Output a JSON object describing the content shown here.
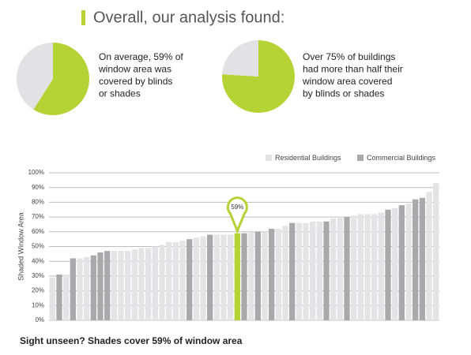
{
  "header": {
    "title": "Overall, our analysis found:",
    "color": "#b5d334"
  },
  "chart_data": [
    {
      "type": "pie",
      "values": [
        59,
        41
      ],
      "colors": [
        "#b5d334",
        "#e2e2e4"
      ],
      "description": [
        "On average, 59% of",
        "window area was",
        "covered by blinds",
        "or shades"
      ]
    },
    {
      "type": "pie",
      "values": [
        76,
        24
      ],
      "colors": [
        "#b5d334",
        "#e2e2e4"
      ],
      "description": [
        "Over 75% of buildings",
        "had more than half their",
        "window area covered",
        "by blinds or shades"
      ]
    },
    {
      "type": "bar",
      "title": "Sight unseen? Shades cover 59% of window area",
      "y_label": "Shaded Window Area",
      "ylim": [
        0,
        100
      ],
      "yticks": [
        {
          "value": 0,
          "label": "0%"
        },
        {
          "value": 10,
          "label": "10%"
        },
        {
          "value": 20,
          "label": "20%"
        },
        {
          "value": 30,
          "label": "30%"
        },
        {
          "value": 40,
          "label": "40%"
        },
        {
          "value": 50,
          "label": "50%"
        },
        {
          "value": 60,
          "label": "60%"
        },
        {
          "value": 70,
          "label": "70%"
        },
        {
          "value": 80,
          "label": "80%"
        },
        {
          "value": 90,
          "label": "90%"
        },
        {
          "value": 100,
          "label": "100%"
        }
      ],
      "grid": true,
      "legend": "top-right",
      "series": [
        {
          "name": "Residential Buildings",
          "color": "#e4e4e6",
          "values": [
            29,
            null,
            31,
            null,
            42,
            43,
            null,
            null,
            null,
            47,
            47,
            47,
            48,
            49,
            49,
            50,
            51,
            53,
            53,
            54,
            null,
            56,
            57,
            null,
            58,
            58,
            58,
            null,
            null,
            60,
            null,
            60,
            null,
            62,
            64,
            null,
            66,
            66,
            67,
            67,
            null,
            69,
            70,
            null,
            71,
            72,
            72,
            72,
            73,
            null,
            76,
            null,
            79,
            null,
            null,
            87,
            93
          ]
        },
        {
          "name": "Commercial Buildings",
          "color": "#a9a9ab",
          "values": [
            null,
            31,
            null,
            42,
            null,
            null,
            44,
            46,
            47,
            null,
            null,
            null,
            null,
            null,
            null,
            null,
            null,
            null,
            null,
            null,
            55,
            null,
            null,
            58,
            null,
            null,
            null,
            59,
            59,
            null,
            60,
            null,
            62,
            null,
            null,
            66,
            null,
            null,
            null,
            null,
            67,
            null,
            null,
            70,
            null,
            null,
            null,
            null,
            null,
            75,
            null,
            78,
            null,
            82,
            83,
            null,
            null
          ]
        }
      ],
      "annotation": {
        "text": "59%",
        "series": 1,
        "index": 27,
        "color": "#b5d334"
      }
    }
  ]
}
